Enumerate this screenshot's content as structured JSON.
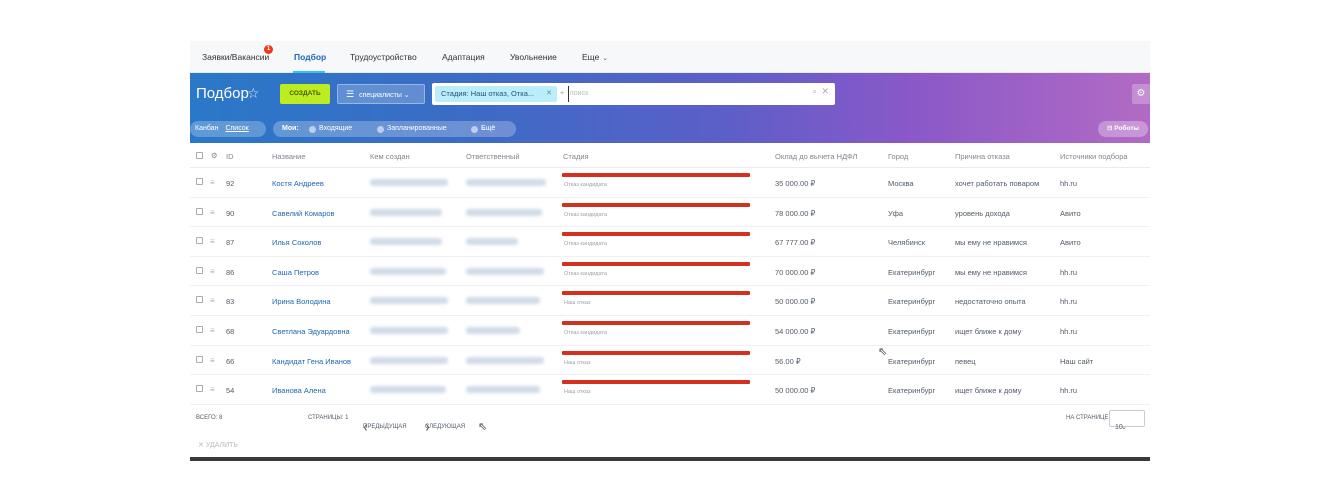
{
  "topnav": {
    "tabs": [
      {
        "label": "Заявки/Вакансии",
        "badge": "1"
      },
      {
        "label": "Подбор",
        "active": true
      },
      {
        "label": "Трудоустройство"
      },
      {
        "label": "Адаптация"
      },
      {
        "label": "Увольнение"
      },
      {
        "label": "Еще"
      }
    ]
  },
  "header": {
    "title": "Подбор",
    "create_label": "создать",
    "specialists_label": "специалисты",
    "filter_chip": "Стадия: Наш отказ, Отка...",
    "filter_extra": "+",
    "search_placeholder": "поиск"
  },
  "toolbar": {
    "view_kanban": "Канбан",
    "view_list": "Список",
    "my": "Мои:",
    "incoming": "Входящие",
    "planned": "Запланированные",
    "more": "Ещё",
    "robots": "Роботы"
  },
  "table": {
    "columns": [
      "ID",
      "Название",
      "Кем создан",
      "Ответственный",
      "Стадия",
      "Оклад до вычета НДФЛ",
      "Город",
      "Причина отказа",
      "Источники подбора"
    ],
    "rows": [
      {
        "id": "92",
        "name": "Костя Андреев",
        "stage": "Отказ кандидата",
        "salary": "35 000.00 ₽",
        "city": "Москва",
        "reason": "хочет работать поваром",
        "source": "hh.ru"
      },
      {
        "id": "90",
        "name": "Савелий Комаров",
        "stage": "Отказ кандидата",
        "salary": "78 000.00 ₽",
        "city": "Уфа",
        "reason": "уровень дохода",
        "source": "Авито"
      },
      {
        "id": "87",
        "name": "Илья Соколов",
        "stage": "Отказ кандидата",
        "salary": "67 777.00 ₽",
        "city": "Челябинск",
        "reason": "мы ему не нравимся",
        "source": "Авито"
      },
      {
        "id": "86",
        "name": "Саша Петров",
        "stage": "Отказ кандидата",
        "salary": "70 000.00 ₽",
        "city": "Екатеринбург",
        "reason": "мы ему не нравимся",
        "source": "hh.ru"
      },
      {
        "id": "83",
        "name": "Ирина Володина",
        "stage": "Наш отказ",
        "salary": "50 000.00 ₽",
        "city": "Екатеринбург",
        "reason": "недостаточно опыта",
        "source": "hh.ru"
      },
      {
        "id": "68",
        "name": "Светлана Эдуардовна",
        "stage": "Отказ кандидата",
        "salary": "54 000.00 ₽",
        "city": "Екатеринбург",
        "reason": "ищет ближе к дому",
        "source": "hh.ru"
      },
      {
        "id": "66",
        "name": "Кандидат Гена Иванов",
        "stage": "Наш отказ",
        "salary": "56.00 ₽",
        "city": "Екатеринбург",
        "reason": "певец",
        "source": "Наш сайт"
      },
      {
        "id": "54",
        "name": "Иванова Алена",
        "stage": "Наш отказ",
        "salary": "50 000.00 ₽",
        "city": "Екатеринбург",
        "reason": "ищет ближе к дому",
        "source": "hh.ru"
      }
    ]
  },
  "footer": {
    "total": "всего: 8",
    "pages": "страницы: 1",
    "prev": "предыдущая",
    "next": "следующая",
    "per_page_label": "на странице:",
    "per_page_value": "10",
    "delete": "удалить"
  },
  "colors": {
    "accent": "#2067b0",
    "create_button": "#bbed21",
    "stage_bar": "#d3301d",
    "chip": "#bcedfc"
  }
}
